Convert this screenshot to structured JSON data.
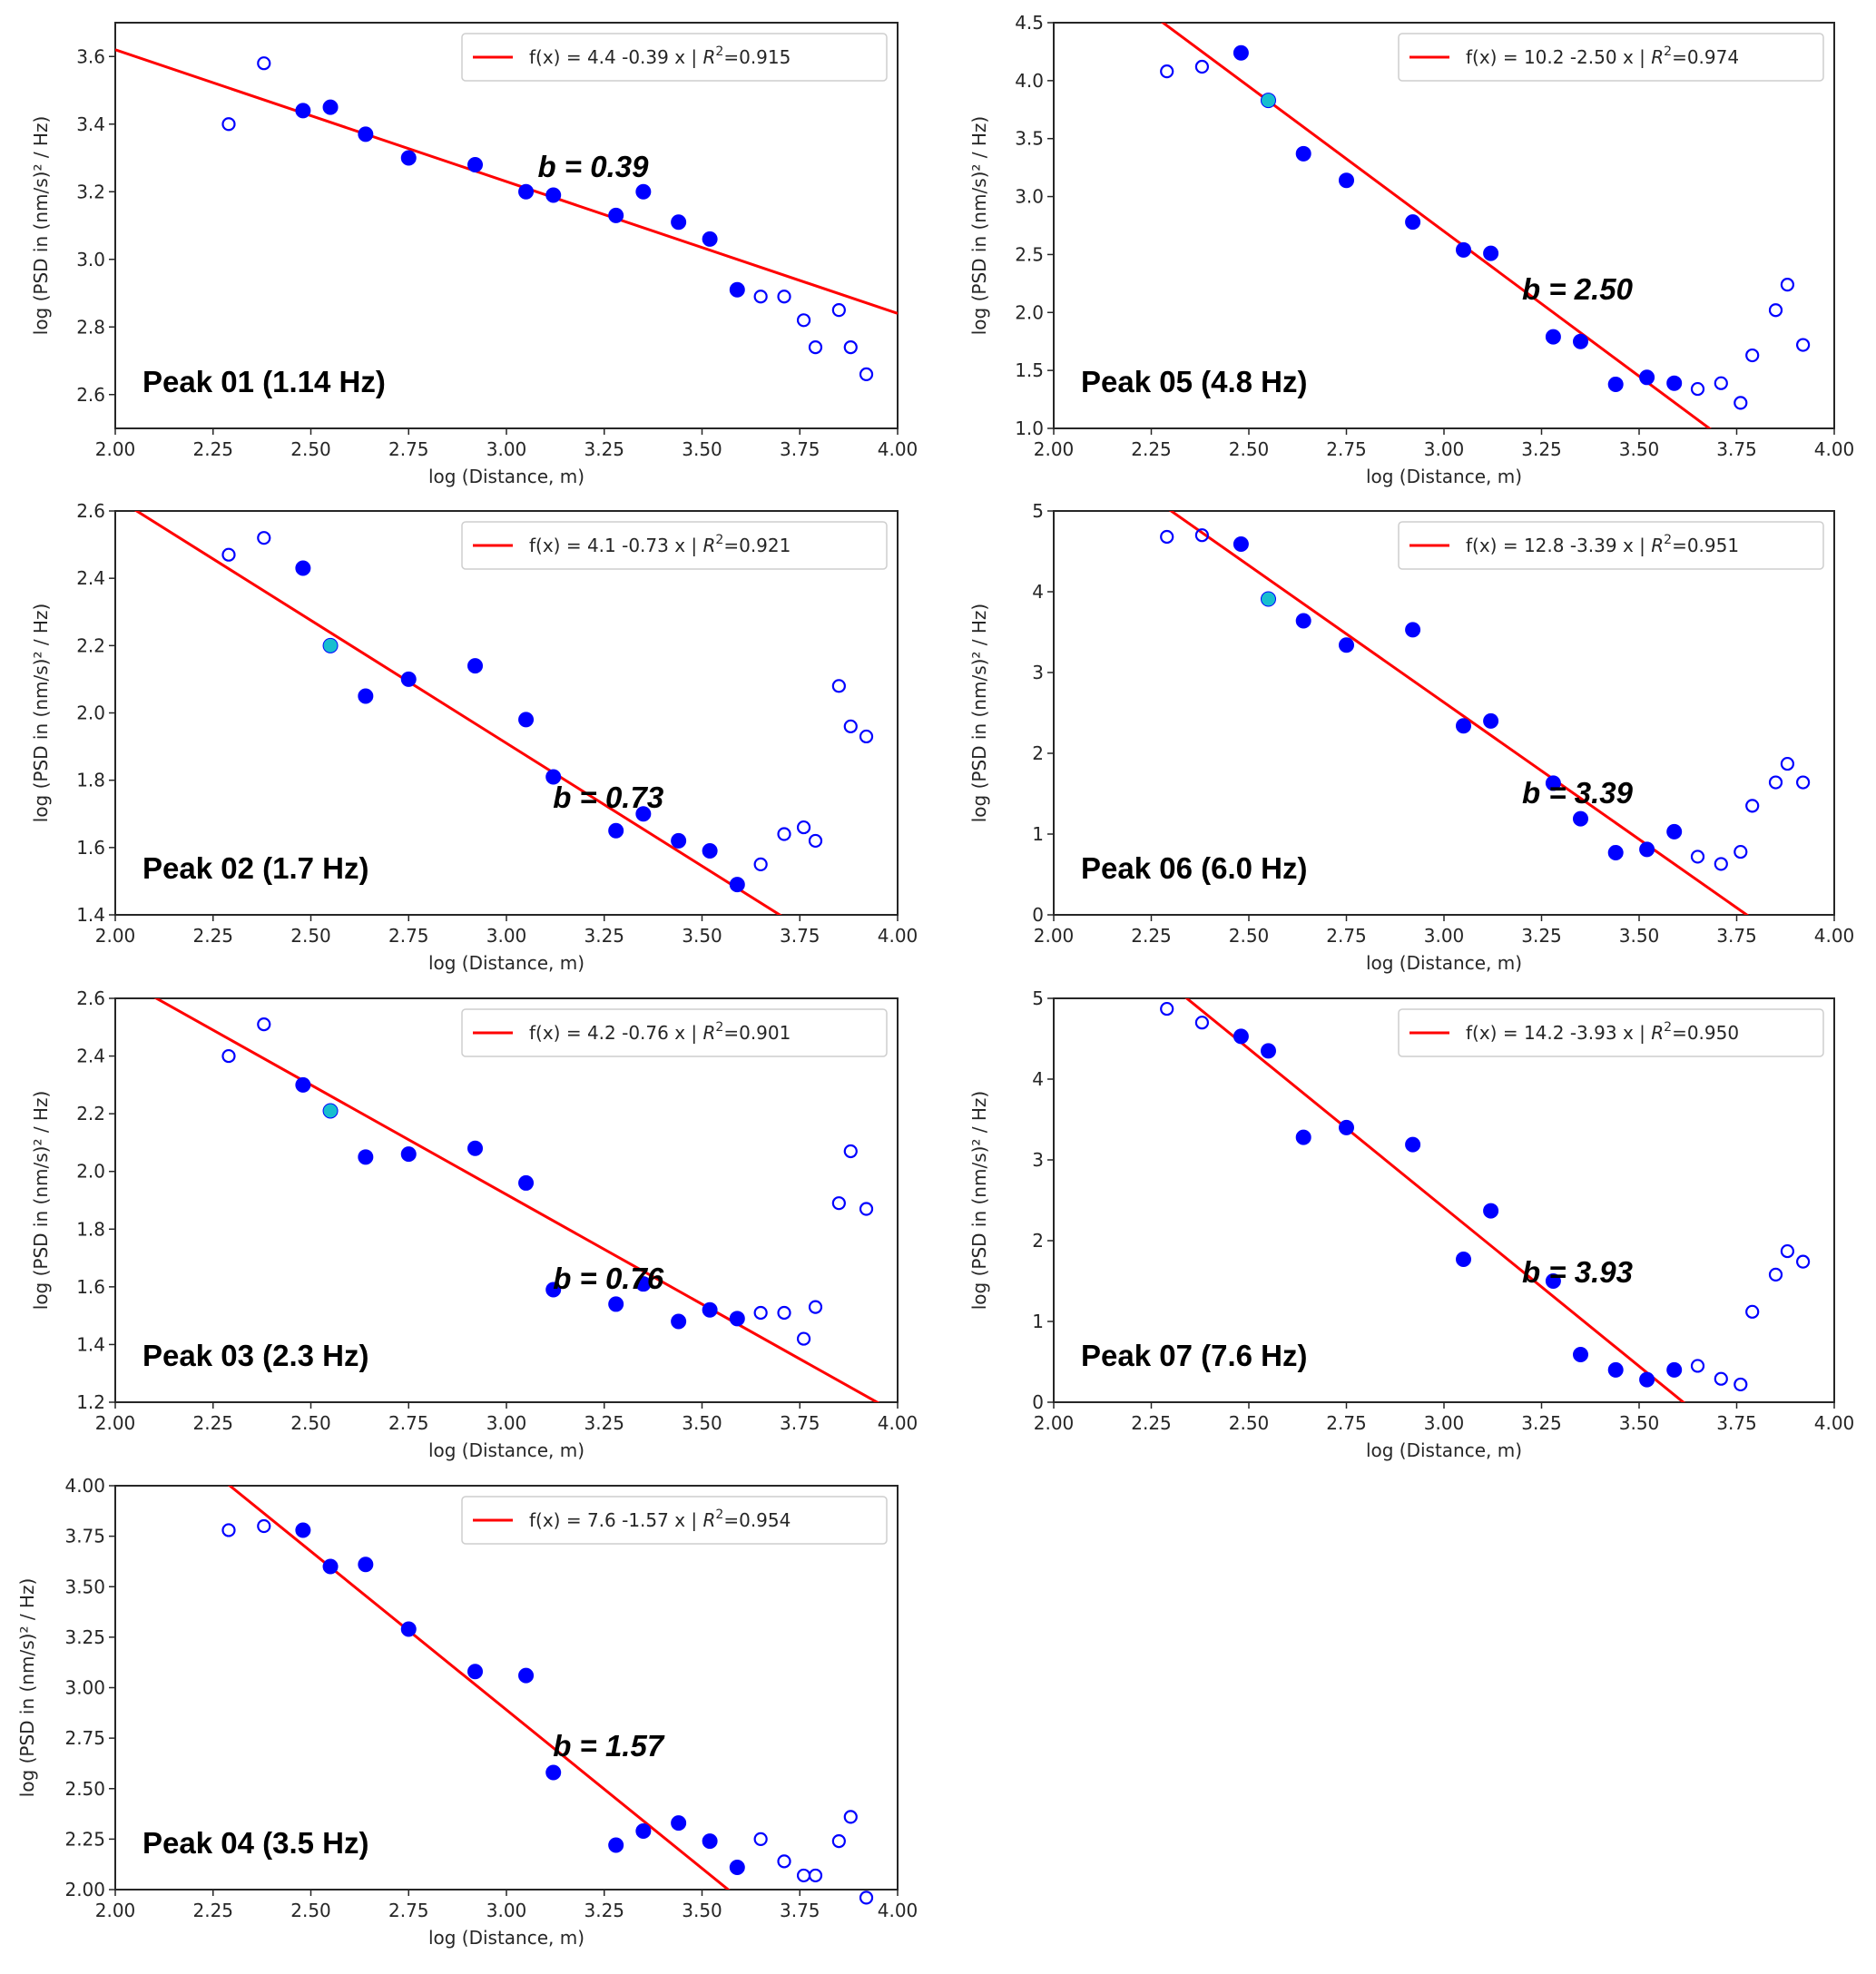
{
  "figure": {
    "layout": "4 rows x 2 columns, last row has one panel",
    "colors": {
      "fit_line": "#ff0000",
      "point_used": "#0000ff",
      "point_excluded_edge": "#0000ff",
      "point_highlight_fill": "#17becf",
      "axes": "#262626",
      "legend_edge": "#cccccc"
    }
  },
  "chart_data": [
    {
      "id": "peak01",
      "type": "scatter",
      "title": "Peak 01 (1.14 Hz)",
      "annotation": "b = 0.39",
      "legend": {
        "text": "f(x) = 4.4 -0.39 x | ",
        "r2_label": "R",
        "r2_sup": "2",
        "r2_value": "=0.915",
        "placement": "top-right"
      },
      "fit": {
        "intercept": 4.4,
        "slope": -0.39,
        "r2": 0.915
      },
      "xlabel": "log (Distance, m)",
      "ylabel": "log (PSD in (nm/s)² / Hz)",
      "xlim": [
        2.0,
        4.0
      ],
      "ylim": [
        2.5,
        3.7
      ],
      "xticks": [
        "2.00",
        "2.25",
        "2.50",
        "2.75",
        "3.00",
        "3.25",
        "3.50",
        "3.75",
        "4.00"
      ],
      "yticks": [
        "2.6",
        "2.8",
        "3.0",
        "3.2",
        "3.4",
        "3.6"
      ],
      "points": [
        {
          "x": 2.29,
          "y": 3.4,
          "kind": "excluded"
        },
        {
          "x": 2.38,
          "y": 3.58,
          "kind": "excluded"
        },
        {
          "x": 2.48,
          "y": 3.44,
          "kind": "used"
        },
        {
          "x": 2.55,
          "y": 3.45,
          "kind": "used"
        },
        {
          "x": 2.64,
          "y": 3.37,
          "kind": "used"
        },
        {
          "x": 2.75,
          "y": 3.3,
          "kind": "used"
        },
        {
          "x": 2.92,
          "y": 3.28,
          "kind": "used"
        },
        {
          "x": 3.05,
          "y": 3.2,
          "kind": "used"
        },
        {
          "x": 3.12,
          "y": 3.19,
          "kind": "used"
        },
        {
          "x": 3.28,
          "y": 3.13,
          "kind": "used"
        },
        {
          "x": 3.35,
          "y": 3.2,
          "kind": "used"
        },
        {
          "x": 3.44,
          "y": 3.11,
          "kind": "used"
        },
        {
          "x": 3.52,
          "y": 3.06,
          "kind": "used"
        },
        {
          "x": 3.59,
          "y": 2.91,
          "kind": "used"
        },
        {
          "x": 3.65,
          "y": 2.89,
          "kind": "excluded"
        },
        {
          "x": 3.71,
          "y": 2.89,
          "kind": "excluded"
        },
        {
          "x": 3.76,
          "y": 2.82,
          "kind": "excluded"
        },
        {
          "x": 3.79,
          "y": 2.74,
          "kind": "excluded"
        },
        {
          "x": 3.85,
          "y": 2.85,
          "kind": "excluded"
        },
        {
          "x": 3.88,
          "y": 2.74,
          "kind": "excluded"
        },
        {
          "x": 3.92,
          "y": 2.66,
          "kind": "excluded"
        }
      ]
    },
    {
      "id": "peak05",
      "type": "scatter",
      "title": "Peak 05 (4.8 Hz)",
      "annotation": "b = 2.50",
      "legend": {
        "text": "f(x) = 10.2 -2.50 x | ",
        "r2_label": "R",
        "r2_sup": "2",
        "r2_value": "=0.974",
        "placement": "top-right"
      },
      "fit": {
        "intercept": 10.2,
        "slope": -2.5,
        "r2": 0.974
      },
      "xlabel": "log (Distance, m)",
      "ylabel": "log (PSD in (nm/s)² / Hz)",
      "xlim": [
        2.0,
        4.0
      ],
      "ylim": [
        1.0,
        4.5
      ],
      "xticks": [
        "2.00",
        "2.25",
        "2.50",
        "2.75",
        "3.00",
        "3.25",
        "3.50",
        "3.75",
        "4.00"
      ],
      "yticks": [
        "1.0",
        "1.5",
        "2.0",
        "2.5",
        "3.0",
        "3.5",
        "4.0",
        "4.5"
      ],
      "points": [
        {
          "x": 2.29,
          "y": 4.08,
          "kind": "excluded"
        },
        {
          "x": 2.38,
          "y": 4.12,
          "kind": "excluded"
        },
        {
          "x": 2.48,
          "y": 4.24,
          "kind": "used"
        },
        {
          "x": 2.55,
          "y": 3.83,
          "kind": "highlight"
        },
        {
          "x": 2.64,
          "y": 3.37,
          "kind": "used"
        },
        {
          "x": 2.75,
          "y": 3.14,
          "kind": "used"
        },
        {
          "x": 2.92,
          "y": 2.78,
          "kind": "used"
        },
        {
          "x": 3.05,
          "y": 2.54,
          "kind": "used"
        },
        {
          "x": 3.12,
          "y": 2.51,
          "kind": "used"
        },
        {
          "x": 3.28,
          "y": 1.79,
          "kind": "used"
        },
        {
          "x": 3.35,
          "y": 1.75,
          "kind": "used"
        },
        {
          "x": 3.44,
          "y": 1.38,
          "kind": "used"
        },
        {
          "x": 3.52,
          "y": 1.44,
          "kind": "used"
        },
        {
          "x": 3.59,
          "y": 1.39,
          "kind": "used"
        },
        {
          "x": 3.65,
          "y": 1.34,
          "kind": "excluded"
        },
        {
          "x": 3.71,
          "y": 1.39,
          "kind": "excluded"
        },
        {
          "x": 3.76,
          "y": 1.22,
          "kind": "excluded"
        },
        {
          "x": 3.79,
          "y": 1.63,
          "kind": "excluded"
        },
        {
          "x": 3.85,
          "y": 2.02,
          "kind": "excluded"
        },
        {
          "x": 3.88,
          "y": 2.24,
          "kind": "excluded"
        },
        {
          "x": 3.92,
          "y": 1.72,
          "kind": "excluded"
        }
      ]
    },
    {
      "id": "peak02",
      "type": "scatter",
      "title": "Peak 02 (1.7 Hz)",
      "annotation": "b = 0.73",
      "legend": {
        "text": "f(x) = 4.1 -0.73 x | ",
        "r2_label": "R",
        "r2_sup": "2",
        "r2_value": "=0.921",
        "placement": "top-right"
      },
      "fit": {
        "intercept": 4.1,
        "slope": -0.73,
        "r2": 0.921
      },
      "xlabel": "log (Distance, m)",
      "ylabel": "log (PSD in (nm/s)² / Hz)",
      "xlim": [
        2.0,
        4.0
      ],
      "ylim": [
        1.4,
        2.6
      ],
      "xticks": [
        "2.00",
        "2.25",
        "2.50",
        "2.75",
        "3.00",
        "3.25",
        "3.50",
        "3.75",
        "4.00"
      ],
      "yticks": [
        "1.4",
        "1.6",
        "1.8",
        "2.0",
        "2.2",
        "2.4",
        "2.6"
      ],
      "points": [
        {
          "x": 2.29,
          "y": 2.47,
          "kind": "excluded"
        },
        {
          "x": 2.38,
          "y": 2.52,
          "kind": "excluded"
        },
        {
          "x": 2.48,
          "y": 2.43,
          "kind": "used"
        },
        {
          "x": 2.55,
          "y": 2.2,
          "kind": "highlight"
        },
        {
          "x": 2.64,
          "y": 2.05,
          "kind": "used"
        },
        {
          "x": 2.75,
          "y": 2.1,
          "kind": "used"
        },
        {
          "x": 2.92,
          "y": 2.14,
          "kind": "used"
        },
        {
          "x": 3.05,
          "y": 1.98,
          "kind": "used"
        },
        {
          "x": 3.12,
          "y": 1.81,
          "kind": "used"
        },
        {
          "x": 3.28,
          "y": 1.65,
          "kind": "used"
        },
        {
          "x": 3.35,
          "y": 1.7,
          "kind": "used"
        },
        {
          "x": 3.44,
          "y": 1.62,
          "kind": "used"
        },
        {
          "x": 3.52,
          "y": 1.59,
          "kind": "used"
        },
        {
          "x": 3.59,
          "y": 1.49,
          "kind": "used"
        },
        {
          "x": 3.65,
          "y": 1.55,
          "kind": "excluded"
        },
        {
          "x": 3.71,
          "y": 1.64,
          "kind": "excluded"
        },
        {
          "x": 3.76,
          "y": 1.66,
          "kind": "excluded"
        },
        {
          "x": 3.79,
          "y": 1.62,
          "kind": "excluded"
        },
        {
          "x": 3.85,
          "y": 2.08,
          "kind": "excluded"
        },
        {
          "x": 3.88,
          "y": 1.96,
          "kind": "excluded"
        },
        {
          "x": 3.92,
          "y": 1.93,
          "kind": "excluded"
        }
      ]
    },
    {
      "id": "peak06",
      "type": "scatter",
      "title": "Peak 06 (6.0 Hz)",
      "annotation": "b = 3.39",
      "legend": {
        "text": "f(x) = 12.8 -3.39 x | ",
        "r2_label": "R",
        "r2_sup": "2",
        "r2_value": "=0.951",
        "placement": "top-right"
      },
      "fit": {
        "intercept": 12.8,
        "slope": -3.39,
        "r2": 0.951
      },
      "xlabel": "log (Distance, m)",
      "ylabel": "log (PSD in (nm/s)² / Hz)",
      "xlim": [
        2.0,
        4.0
      ],
      "ylim": [
        0,
        5
      ],
      "xticks": [
        "2.00",
        "2.25",
        "2.50",
        "2.75",
        "3.00",
        "3.25",
        "3.50",
        "3.75",
        "4.00"
      ],
      "yticks": [
        "0",
        "1",
        "2",
        "3",
        "4",
        "5"
      ],
      "points": [
        {
          "x": 2.29,
          "y": 4.68,
          "kind": "excluded"
        },
        {
          "x": 2.38,
          "y": 4.7,
          "kind": "excluded"
        },
        {
          "x": 2.48,
          "y": 4.59,
          "kind": "used"
        },
        {
          "x": 2.55,
          "y": 3.91,
          "kind": "highlight"
        },
        {
          "x": 2.64,
          "y": 3.64,
          "kind": "used"
        },
        {
          "x": 2.75,
          "y": 3.34,
          "kind": "used"
        },
        {
          "x": 2.92,
          "y": 3.53,
          "kind": "used"
        },
        {
          "x": 3.05,
          "y": 2.34,
          "kind": "used"
        },
        {
          "x": 3.12,
          "y": 2.4,
          "kind": "used"
        },
        {
          "x": 3.28,
          "y": 1.63,
          "kind": "used"
        },
        {
          "x": 3.35,
          "y": 1.19,
          "kind": "used"
        },
        {
          "x": 3.44,
          "y": 0.77,
          "kind": "used"
        },
        {
          "x": 3.52,
          "y": 0.81,
          "kind": "used"
        },
        {
          "x": 3.59,
          "y": 1.03,
          "kind": "used"
        },
        {
          "x": 3.65,
          "y": 0.72,
          "kind": "excluded"
        },
        {
          "x": 3.71,
          "y": 0.63,
          "kind": "excluded"
        },
        {
          "x": 3.76,
          "y": 0.78,
          "kind": "excluded"
        },
        {
          "x": 3.79,
          "y": 1.35,
          "kind": "excluded"
        },
        {
          "x": 3.85,
          "y": 1.64,
          "kind": "excluded"
        },
        {
          "x": 3.88,
          "y": 1.87,
          "kind": "excluded"
        },
        {
          "x": 3.92,
          "y": 1.64,
          "kind": "excluded"
        }
      ]
    },
    {
      "id": "peak03",
      "type": "scatter",
      "title": "Peak 03 (2.3 Hz)",
      "annotation": "b = 0.76",
      "legend": {
        "text": "f(x) = 4.2 -0.76 x | ",
        "r2_label": "R",
        "r2_sup": "2",
        "r2_value": "=0.901",
        "placement": "top-right"
      },
      "fit": {
        "intercept": 4.2,
        "slope": -0.76,
        "r2": 0.901
      },
      "xlabel": "log (Distance, m)",
      "ylabel": "log (PSD in (nm/s)² / Hz)",
      "xlim": [
        2.0,
        4.0
      ],
      "ylim": [
        1.2,
        2.6
      ],
      "xticks": [
        "2.00",
        "2.25",
        "2.50",
        "2.75",
        "3.00",
        "3.25",
        "3.50",
        "3.75",
        "4.00"
      ],
      "yticks": [
        "1.2",
        "1.4",
        "1.6",
        "1.8",
        "2.0",
        "2.2",
        "2.4",
        "2.6"
      ],
      "points": [
        {
          "x": 2.29,
          "y": 2.4,
          "kind": "excluded"
        },
        {
          "x": 2.38,
          "y": 2.51,
          "kind": "excluded"
        },
        {
          "x": 2.48,
          "y": 2.3,
          "kind": "used"
        },
        {
          "x": 2.55,
          "y": 2.21,
          "kind": "highlight"
        },
        {
          "x": 2.64,
          "y": 2.05,
          "kind": "used"
        },
        {
          "x": 2.75,
          "y": 2.06,
          "kind": "used"
        },
        {
          "x": 2.92,
          "y": 2.08,
          "kind": "used"
        },
        {
          "x": 3.05,
          "y": 1.96,
          "kind": "used"
        },
        {
          "x": 3.12,
          "y": 1.59,
          "kind": "used"
        },
        {
          "x": 3.28,
          "y": 1.54,
          "kind": "used"
        },
        {
          "x": 3.35,
          "y": 1.61,
          "kind": "used"
        },
        {
          "x": 3.44,
          "y": 1.48,
          "kind": "used"
        },
        {
          "x": 3.52,
          "y": 1.52,
          "kind": "used"
        },
        {
          "x": 3.59,
          "y": 1.49,
          "kind": "used"
        },
        {
          "x": 3.65,
          "y": 1.51,
          "kind": "excluded"
        },
        {
          "x": 3.71,
          "y": 1.51,
          "kind": "excluded"
        },
        {
          "x": 3.76,
          "y": 1.42,
          "kind": "excluded"
        },
        {
          "x": 3.79,
          "y": 1.53,
          "kind": "excluded"
        },
        {
          "x": 3.85,
          "y": 1.89,
          "kind": "excluded"
        },
        {
          "x": 3.88,
          "y": 2.07,
          "kind": "excluded"
        },
        {
          "x": 3.92,
          "y": 1.87,
          "kind": "excluded"
        }
      ]
    },
    {
      "id": "peak07",
      "type": "scatter",
      "title": "Peak 07 (7.6 Hz)",
      "annotation": "b = 3.93",
      "legend": {
        "text": "f(x) = 14.2 -3.93 x | ",
        "r2_label": "R",
        "r2_sup": "2",
        "r2_value": "=0.950",
        "placement": "top-right"
      },
      "fit": {
        "intercept": 14.2,
        "slope": -3.93,
        "r2": 0.95
      },
      "xlabel": "log (Distance, m)",
      "ylabel": "log (PSD in (nm/s)² / Hz)",
      "xlim": [
        2.0,
        4.0
      ],
      "ylim": [
        0,
        5
      ],
      "xticks": [
        "2.00",
        "2.25",
        "2.50",
        "2.75",
        "3.00",
        "3.25",
        "3.50",
        "3.75",
        "4.00"
      ],
      "yticks": [
        "0",
        "1",
        "2",
        "3",
        "4",
        "5"
      ],
      "points": [
        {
          "x": 2.29,
          "y": 4.87,
          "kind": "excluded"
        },
        {
          "x": 2.38,
          "y": 4.7,
          "kind": "excluded"
        },
        {
          "x": 2.48,
          "y": 4.53,
          "kind": "used"
        },
        {
          "x": 2.55,
          "y": 4.35,
          "kind": "used"
        },
        {
          "x": 2.64,
          "y": 3.28,
          "kind": "used"
        },
        {
          "x": 2.75,
          "y": 3.4,
          "kind": "used"
        },
        {
          "x": 2.92,
          "y": 3.19,
          "kind": "used"
        },
        {
          "x": 3.05,
          "y": 1.77,
          "kind": "used"
        },
        {
          "x": 3.12,
          "y": 2.37,
          "kind": "used"
        },
        {
          "x": 3.28,
          "y": 1.5,
          "kind": "used"
        },
        {
          "x": 3.35,
          "y": 0.59,
          "kind": "used"
        },
        {
          "x": 3.44,
          "y": 0.4,
          "kind": "used"
        },
        {
          "x": 3.52,
          "y": 0.28,
          "kind": "used"
        },
        {
          "x": 3.59,
          "y": 0.4,
          "kind": "used"
        },
        {
          "x": 3.65,
          "y": 0.45,
          "kind": "excluded"
        },
        {
          "x": 3.71,
          "y": 0.29,
          "kind": "excluded"
        },
        {
          "x": 3.76,
          "y": 0.22,
          "kind": "excluded"
        },
        {
          "x": 3.79,
          "y": 1.12,
          "kind": "excluded"
        },
        {
          "x": 3.85,
          "y": 1.58,
          "kind": "excluded"
        },
        {
          "x": 3.88,
          "y": 1.87,
          "kind": "excluded"
        },
        {
          "x": 3.92,
          "y": 1.74,
          "kind": "excluded"
        }
      ]
    },
    {
      "id": "peak04",
      "type": "scatter",
      "title": "Peak 04 (3.5 Hz)",
      "annotation": "b = 1.57",
      "legend": {
        "text": "f(x) = 7.6 -1.57 x | ",
        "r2_label": "R",
        "r2_sup": "2",
        "r2_value": "=0.954",
        "placement": "top-right"
      },
      "fit": {
        "intercept": 7.6,
        "slope": -1.57,
        "r2": 0.954
      },
      "xlabel": "log (Distance, m)",
      "ylabel": "log (PSD in (nm/s)² / Hz)",
      "xlim": [
        2.0,
        4.0
      ],
      "ylim": [
        2.0,
        4.0
      ],
      "xticks": [
        "2.00",
        "2.25",
        "2.50",
        "2.75",
        "3.00",
        "3.25",
        "3.50",
        "3.75",
        "4.00"
      ],
      "yticks": [
        "2.00",
        "2.25",
        "2.50",
        "2.75",
        "3.00",
        "3.25",
        "3.50",
        "3.75",
        "4.00"
      ],
      "points": [
        {
          "x": 2.29,
          "y": 3.78,
          "kind": "excluded"
        },
        {
          "x": 2.38,
          "y": 3.8,
          "kind": "excluded"
        },
        {
          "x": 2.48,
          "y": 3.78,
          "kind": "used"
        },
        {
          "x": 2.55,
          "y": 3.6,
          "kind": "used"
        },
        {
          "x": 2.64,
          "y": 3.61,
          "kind": "used"
        },
        {
          "x": 2.75,
          "y": 3.29,
          "kind": "used"
        },
        {
          "x": 2.92,
          "y": 3.08,
          "kind": "used"
        },
        {
          "x": 3.05,
          "y": 3.06,
          "kind": "used"
        },
        {
          "x": 3.12,
          "y": 2.58,
          "kind": "used"
        },
        {
          "x": 3.28,
          "y": 2.22,
          "kind": "used"
        },
        {
          "x": 3.35,
          "y": 2.29,
          "kind": "used"
        },
        {
          "x": 3.44,
          "y": 2.33,
          "kind": "used"
        },
        {
          "x": 3.52,
          "y": 2.24,
          "kind": "used"
        },
        {
          "x": 3.59,
          "y": 2.11,
          "kind": "used"
        },
        {
          "x": 3.65,
          "y": 2.25,
          "kind": "excluded"
        },
        {
          "x": 3.71,
          "y": 2.14,
          "kind": "excluded"
        },
        {
          "x": 3.76,
          "y": 2.07,
          "kind": "excluded"
        },
        {
          "x": 3.79,
          "y": 2.07,
          "kind": "excluded"
        },
        {
          "x": 3.85,
          "y": 2.24,
          "kind": "excluded"
        },
        {
          "x": 3.88,
          "y": 2.36,
          "kind": "excluded"
        },
        {
          "x": 3.92,
          "y": 1.96,
          "kind": "excluded"
        }
      ]
    }
  ]
}
